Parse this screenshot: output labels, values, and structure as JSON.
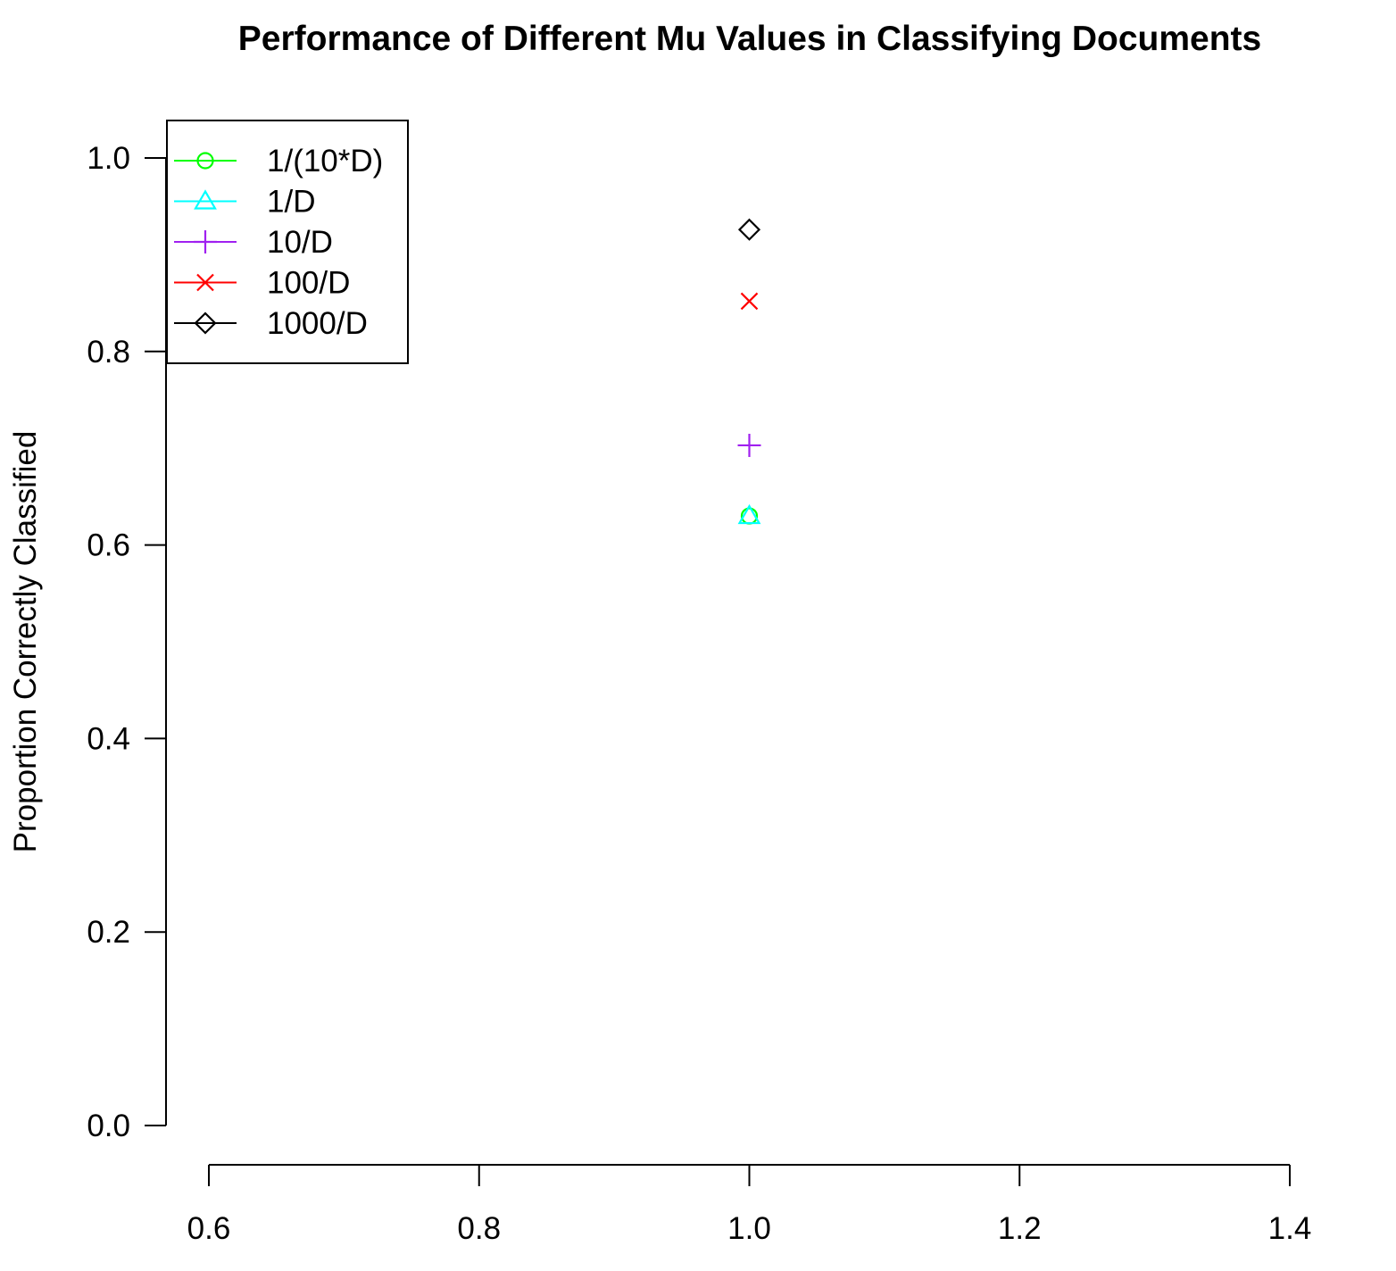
{
  "chart_data": {
    "type": "scatter",
    "title": "Performance of Different Mu Values in Classifying Documents",
    "xlabel": "",
    "ylabel": "Proportion Correctly Classified",
    "xlim": [
      0.6,
      1.4
    ],
    "ylim": [
      0.0,
      1.0
    ],
    "x_ticks": [
      "0.6",
      "0.8",
      "1.0",
      "1.2",
      "1.4"
    ],
    "y_ticks": [
      "0.0",
      "0.2",
      "0.4",
      "0.6",
      "0.8",
      "1.0"
    ],
    "grid": false,
    "legend_position": "top-left",
    "series": [
      {
        "name": "1/(10*D)",
        "color": "#00ff00",
        "marker": "circle",
        "x": [
          1.0
        ],
        "y": [
          0.63
        ]
      },
      {
        "name": "1/D",
        "color": "#00ffff",
        "marker": "triangle",
        "x": [
          1.0
        ],
        "y": [
          0.63
        ]
      },
      {
        "name": "10/D",
        "color": "#a020f0",
        "marker": "plus",
        "x": [
          1.0
        ],
        "y": [
          0.703
        ]
      },
      {
        "name": "100/D",
        "color": "#ff0000",
        "marker": "cross",
        "x": [
          1.0
        ],
        "y": [
          0.852
        ]
      },
      {
        "name": "1000/D",
        "color": "#000000",
        "marker": "diamond",
        "x": [
          1.0
        ],
        "y": [
          0.926
        ]
      }
    ]
  }
}
